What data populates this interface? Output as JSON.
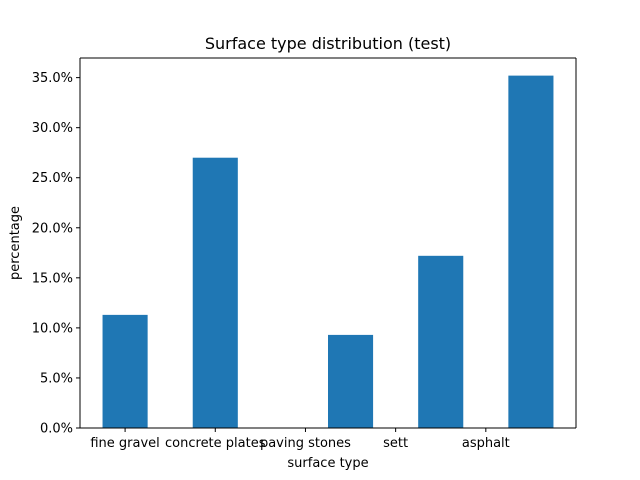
{
  "chart_data": {
    "type": "bar",
    "title": "Surface type distribution (test)",
    "xlabel": "surface type",
    "ylabel": "percentage",
    "bar_x": [
      0,
      1,
      2.5,
      3.5,
      4.5
    ],
    "bar_labels": [
      "",
      "",
      "",
      "",
      ""
    ],
    "values": [
      11.3,
      27.0,
      9.3,
      17.2,
      35.2
    ],
    "xticks": [
      {
        "x": 0,
        "label": "fine gravel"
      },
      {
        "x": 1,
        "label": "concrete plates"
      },
      {
        "x": 2,
        "label": "paving stones"
      },
      {
        "x": 3,
        "label": "sett"
      },
      {
        "x": 4,
        "label": "asphalt"
      }
    ],
    "yticks": [
      0,
      5,
      10,
      15,
      20,
      25,
      30,
      35
    ],
    "ytick_labels": [
      "0.0%",
      "5.0%",
      "10.0%",
      "15.0%",
      "20.0%",
      "25.0%",
      "30.0%",
      "35.0%"
    ],
    "xlim": [
      -0.5,
      5.0
    ],
    "ylim": [
      0,
      36.96
    ],
    "bar_width": 0.5,
    "grid": false,
    "bar_color": "#1f77b4"
  }
}
